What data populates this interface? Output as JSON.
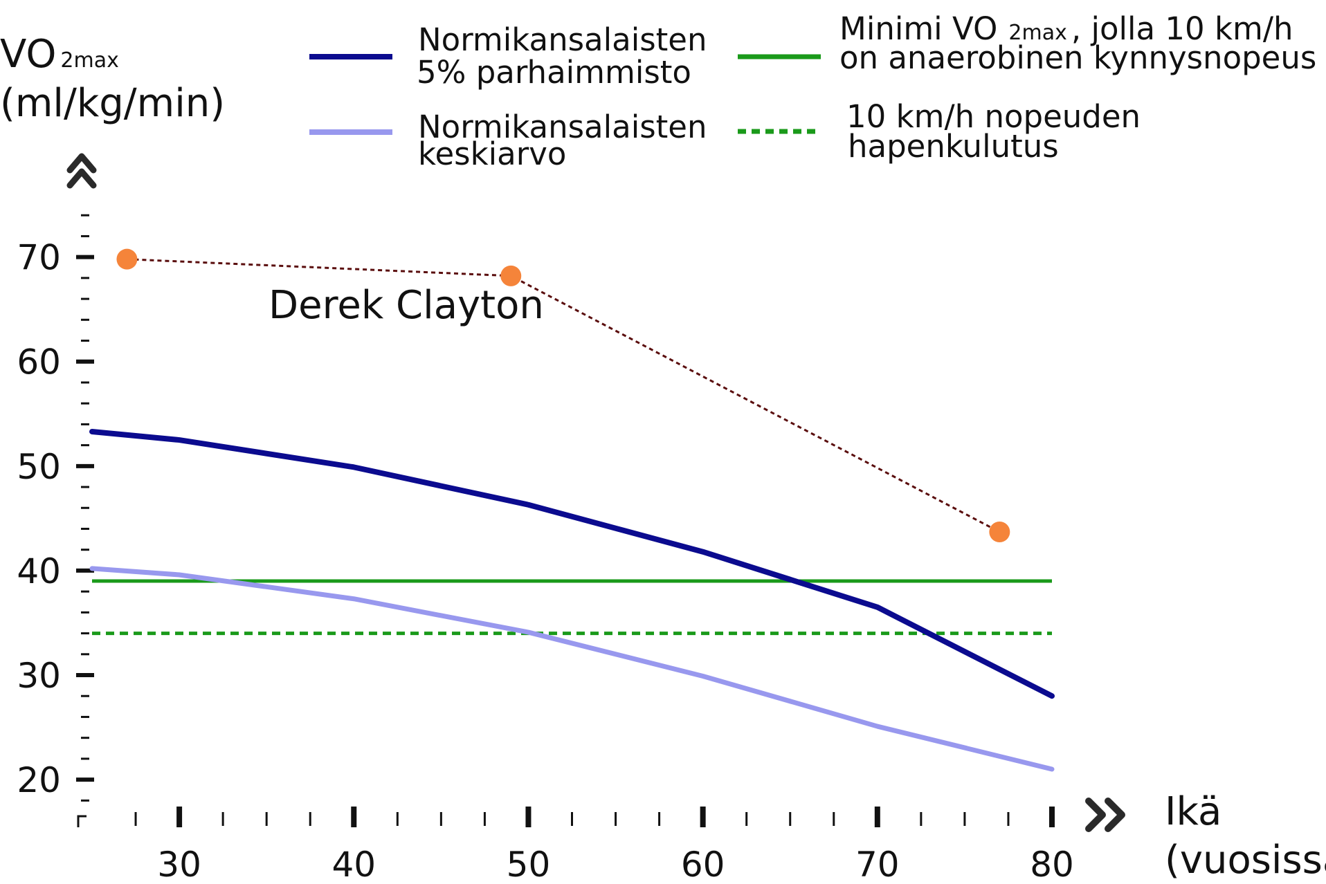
{
  "chart_data": {
    "type": "line",
    "ylabel_main": "VO",
    "ylabel_sub": "2max",
    "ylabel_unit": "(ml/kg/min)",
    "xlabel_line1": "Ikä",
    "xlabel_line2": "(vuosissa)",
    "xlim": [
      25,
      80
    ],
    "ylim": [
      16.5,
      76
    ],
    "xticks": [
      30,
      40,
      50,
      60,
      70,
      80
    ],
    "yticks": [
      20,
      30,
      40,
      50,
      60,
      70
    ],
    "series": [
      {
        "name_line1": "Normikansalaisten",
        "name_line2": "5% parhaimmisto",
        "color": "#0b0b8f",
        "x": [
          25,
          30,
          40,
          50,
          60,
          70,
          80
        ],
        "y": [
          53.3,
          52.5,
          49.9,
          46.3,
          41.8,
          36.5,
          28
        ]
      },
      {
        "name_line1": "Normikansalaisten",
        "name_line2": "keskiarvo",
        "color": "#9898ee",
        "x": [
          25,
          30,
          40,
          50,
          60,
          70,
          80
        ],
        "y": [
          40.2,
          39.6,
          37.3,
          34.1,
          29.9,
          25.1,
          21
        ]
      }
    ],
    "reference_lines": [
      {
        "name_line1_a": "Minimi VO",
        "name_line1_sub": "2max",
        "name_line1_b": ", jolla 10 km/h",
        "name_line2": "on anaerobinen kynnysnopeus",
        "y": 39,
        "color": "#1a9a1a",
        "style": "solid"
      },
      {
        "name_line1": "10 km/h nopeuden",
        "name_line2": "hapenkulutus",
        "y": 34,
        "color": "#1a9a1a",
        "style": "dotted"
      }
    ],
    "annotation": {
      "label": "Derek Clayton",
      "color": "#f5843a",
      "line_color": "#5a0d0d",
      "x": [
        27,
        49,
        77
      ],
      "y": [
        69.8,
        68.2,
        43.7
      ]
    }
  }
}
